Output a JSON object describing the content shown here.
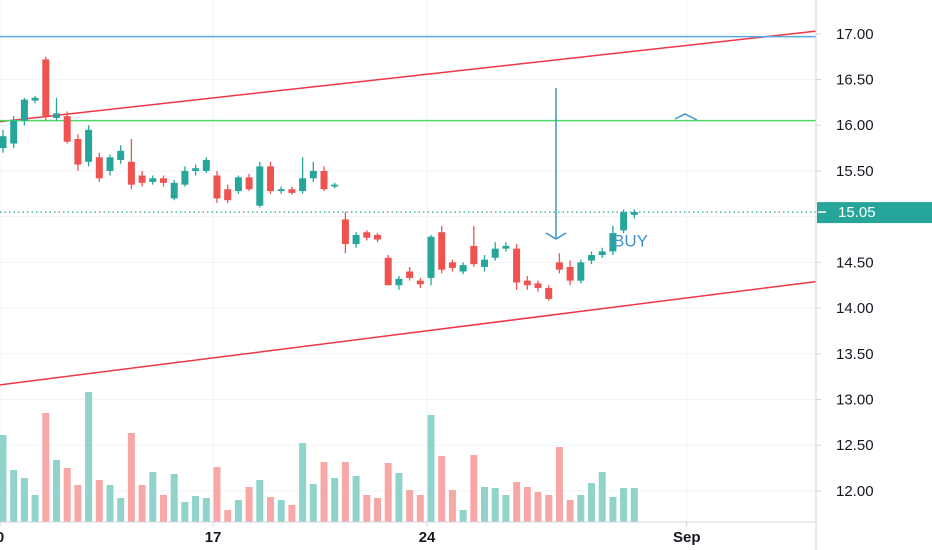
{
  "chart_data": {
    "type": "candlestick",
    "open": [
      15.75,
      15.8,
      16.05,
      16.27,
      16.72,
      16.08,
      16.1,
      15.85,
      15.6,
      15.65,
      15.5,
      15.62,
      15.6,
      15.45,
      15.38,
      15.42,
      15.2,
      15.35,
      15.5,
      15.5,
      15.45,
      15.3,
      15.28,
      15.43,
      15.12,
      15.55,
      15.28,
      15.3,
      15.28,
      15.42,
      15.5,
      15.33,
      14.97,
      14.7,
      14.83,
      14.8,
      14.55,
      14.25,
      14.4,
      14.3,
      14.33,
      14.83,
      14.5,
      14.4,
      14.68,
      14.45,
      14.55,
      14.65,
      14.65,
      14.3,
      14.27,
      14.22,
      14.5,
      14.45,
      14.3,
      14.52,
      14.58,
      14.62,
      14.85,
      15.02
    ],
    "high": [
      15.95,
      16.1,
      16.3,
      16.32,
      16.75,
      16.3,
      16.15,
      15.9,
      16.0,
      15.7,
      15.68,
      15.78,
      15.85,
      15.5,
      15.45,
      15.45,
      15.4,
      15.55,
      15.57,
      15.65,
      15.5,
      15.35,
      15.45,
      15.47,
      15.6,
      15.6,
      15.33,
      15.33,
      15.65,
      15.6,
      15.55,
      15.37,
      15.05,
      14.83,
      14.85,
      14.82,
      14.58,
      14.35,
      14.45,
      14.33,
      14.8,
      14.9,
      14.53,
      14.5,
      14.9,
      14.58,
      14.72,
      14.72,
      14.7,
      14.35,
      14.3,
      14.25,
      14.6,
      14.52,
      14.53,
      14.62,
      14.66,
      14.9,
      15.08,
      15.08
    ],
    "low": [
      15.7,
      15.75,
      16.0,
      16.24,
      16.05,
      16.05,
      15.8,
      15.5,
      15.55,
      15.38,
      15.45,
      15.58,
      15.3,
      15.33,
      15.35,
      15.33,
      15.18,
      15.33,
      15.45,
      15.48,
      15.15,
      15.15,
      15.25,
      15.28,
      15.1,
      15.25,
      15.25,
      15.24,
      15.25,
      15.38,
      15.28,
      15.31,
      14.6,
      14.66,
      14.74,
      14.72,
      14.25,
      14.2,
      14.3,
      14.22,
      14.25,
      14.38,
      14.4,
      14.37,
      14.45,
      14.4,
      14.52,
      14.62,
      14.2,
      14.2,
      14.18,
      14.08,
      14.38,
      14.25,
      14.27,
      14.48,
      14.55,
      14.58,
      14.82,
      14.98
    ],
    "close": [
      15.88,
      16.05,
      16.28,
      16.3,
      16.1,
      16.13,
      15.82,
      15.57,
      15.95,
      15.42,
      15.65,
      15.72,
      15.35,
      15.37,
      15.42,
      15.37,
      15.37,
      15.5,
      15.53,
      15.62,
      15.2,
      15.18,
      15.43,
      15.3,
      15.55,
      15.28,
      15.3,
      15.26,
      15.42,
      15.5,
      15.3,
      15.35,
      14.7,
      14.8,
      14.77,
      14.75,
      14.25,
      14.32,
      14.33,
      14.26,
      14.78,
      14.42,
      14.44,
      14.47,
      14.48,
      14.53,
      14.65,
      14.68,
      14.28,
      14.25,
      14.22,
      14.1,
      14.42,
      14.3,
      14.5,
      14.58,
      14.62,
      14.82,
      15.05,
      15.05
    ],
    "volume": [
      87,
      52,
      44,
      27,
      109,
      62,
      54,
      37,
      130,
      42,
      37,
      24,
      89,
      37,
      50,
      27,
      48,
      20,
      26,
      24,
      55,
      12,
      22,
      35,
      42,
      25,
      22,
      17,
      79,
      38,
      60,
      44,
      60,
      46,
      27,
      24,
      59,
      49,
      32,
      27,
      107,
      66,
      32,
      12,
      67,
      35,
      34,
      27,
      40,
      35,
      30,
      27,
      75,
      22,
      27,
      39,
      50,
      25,
      34,
      34
    ],
    "up_color": "#26a69a",
    "down_color": "#ef5350",
    "volume_up_color": "#8fd3cb",
    "volume_down_color": "#f7a8a6",
    "last_price": 15.05,
    "xlim": [
      -0.28,
      75.98
    ],
    "xticks": [
      {
        "value": -0.28,
        "label": "0"
      },
      {
        "value": 19.63,
        "label": "17"
      },
      {
        "value": 39.63,
        "label": "24"
      },
      {
        "value": 63.9,
        "label": "Sep"
      }
    ],
    "ylim": [
      11.66,
      17.37
    ],
    "yticks": [
      {
        "value": 12,
        "label": "12.00"
      },
      {
        "value": 12.5,
        "label": "12.50"
      },
      {
        "value": 13,
        "label": "13.00"
      },
      {
        "value": 13.5,
        "label": "13.50"
      },
      {
        "value": 14,
        "label": "14.00"
      },
      {
        "value": 14.5,
        "label": "14.50"
      },
      {
        "value": 15,
        "label": "15.00"
      },
      {
        "value": 15.5,
        "label": "15.50"
      },
      {
        "value": 16,
        "label": "16.00"
      },
      {
        "value": 16.5,
        "label": "16.50"
      },
      {
        "value": 17,
        "label": "17.00"
      }
    ],
    "grid": true,
    "lines": [
      {
        "color": "#f23645",
        "values": [
          16.04,
          17.03
        ]
      },
      {
        "color": "#f23645",
        "values": [
          13.16,
          14.29
        ]
      },
      {
        "color": "#5aa7de",
        "values": [
          16.97,
          16.97
        ]
      },
      {
        "color": "#4cd964",
        "values": [
          16.05,
          16.05
        ]
      }
    ],
    "annotation": "BUY"
  }
}
